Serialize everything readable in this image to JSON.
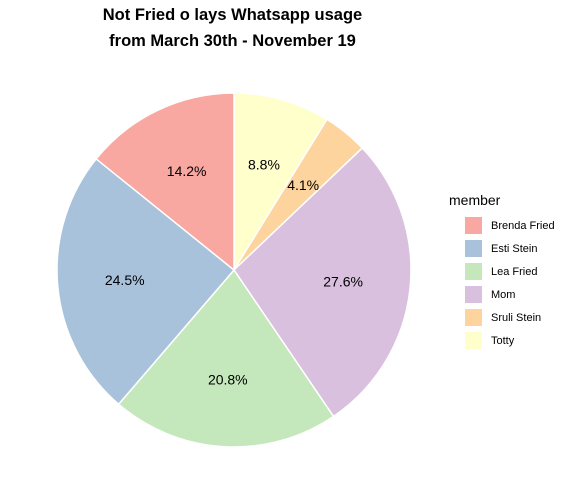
{
  "chart_data": {
    "type": "pie",
    "title": "Not Fried o lays Whatsapp usage",
    "subtitle": "from March 30th - November 19",
    "legend_title": "member",
    "legend_position": "right",
    "slices": [
      {
        "name": "Totty",
        "value": 8.8,
        "label": "8.8%",
        "color": "#FFFFCC"
      },
      {
        "name": "Sruli Stein",
        "value": 4.1,
        "label": "4.1%",
        "color": "#FDD49E"
      },
      {
        "name": "Mom",
        "value": 27.6,
        "label": "27.6%",
        "color": "#D8C0DE"
      },
      {
        "name": "Lea Fried",
        "value": 20.8,
        "label": "20.8%",
        "color": "#C4E7BB"
      },
      {
        "name": "Esti Stein",
        "value": 24.5,
        "label": "24.5%",
        "color": "#A8C2DC"
      },
      {
        "name": "Brenda Fried",
        "value": 14.2,
        "label": "14.2%",
        "color": "#F8A7A1"
      }
    ],
    "legend_order": [
      "Brenda Fried",
      "Esti Stein",
      "Lea Fried",
      "Mom",
      "Sruli Stein",
      "Totty"
    ]
  }
}
